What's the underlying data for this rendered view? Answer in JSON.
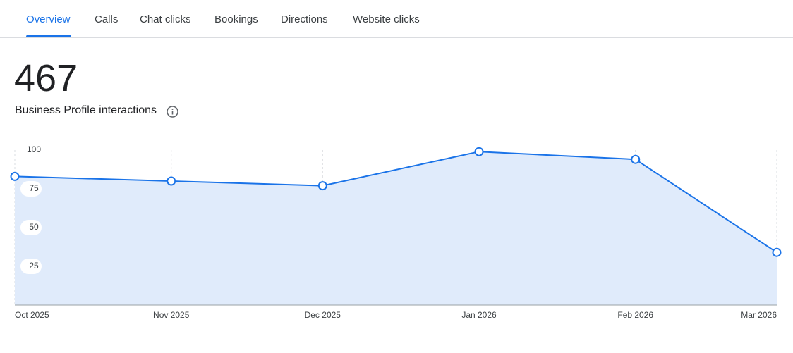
{
  "tabs": [
    "Overview",
    "Calls",
    "Chat clicks",
    "Bookings",
    "Directions",
    "Website clicks"
  ],
  "total": "467",
  "subtitle": "Business Profile interactions",
  "chart_data": {
    "type": "area",
    "categories": [
      "Oct 2025",
      "Nov 2025",
      "Dec 2025",
      "Jan 2026",
      "Feb 2026",
      "Mar 2026"
    ],
    "values": [
      83,
      80,
      77,
      99,
      94,
      34
    ],
    "color": "#1a73e8",
    "fill": "#e0ebfb",
    "ylim": [
      0,
      100
    ],
    "yticks": [
      25,
      50,
      75,
      100
    ],
    "grid": true
  }
}
